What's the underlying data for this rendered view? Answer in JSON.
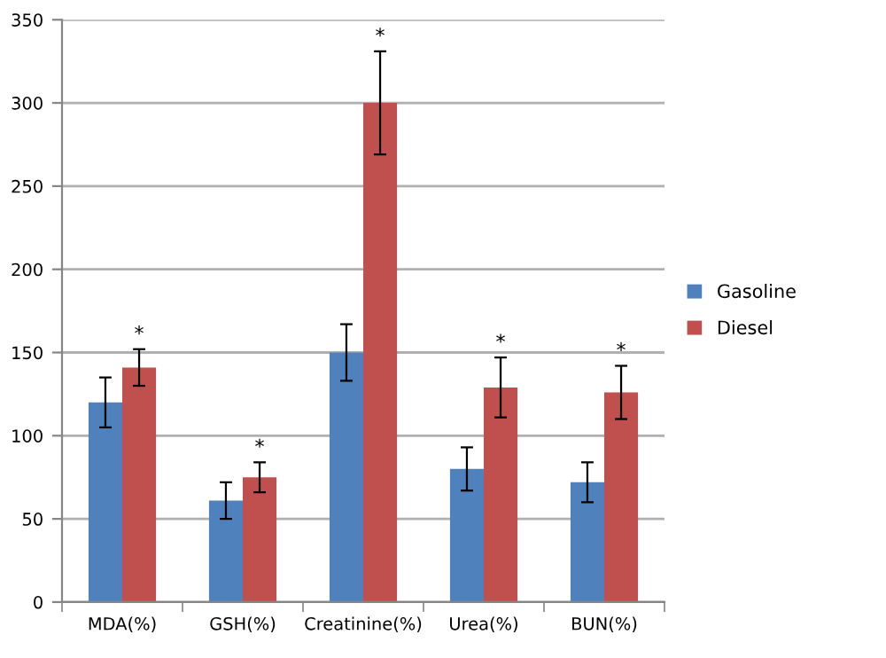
{
  "chart_data": {
    "type": "bar",
    "categories": [
      "MDA(%)",
      "GSH(%)",
      "Creatinine(%)",
      "Urea(%)",
      "BUN(%)"
    ],
    "series": [
      {
        "name": "Gasoline",
        "color": "#4f81bd",
        "values": [
          120,
          61,
          150,
          80,
          72
        ],
        "errors": [
          15,
          11,
          17,
          13,
          12
        ]
      },
      {
        "name": "Diesel",
        "color": "#c0504d",
        "values": [
          141,
          75,
          300,
          129,
          126
        ],
        "errors": [
          11,
          9,
          31,
          18,
          16
        ]
      }
    ],
    "ylim": [
      0,
      350
    ],
    "yticks": [
      0,
      50,
      100,
      150,
      200,
      250,
      300,
      350
    ],
    "grid": "y",
    "legend": "right",
    "annotations": [
      "*",
      "*",
      "*",
      "*",
      "*"
    ]
  }
}
